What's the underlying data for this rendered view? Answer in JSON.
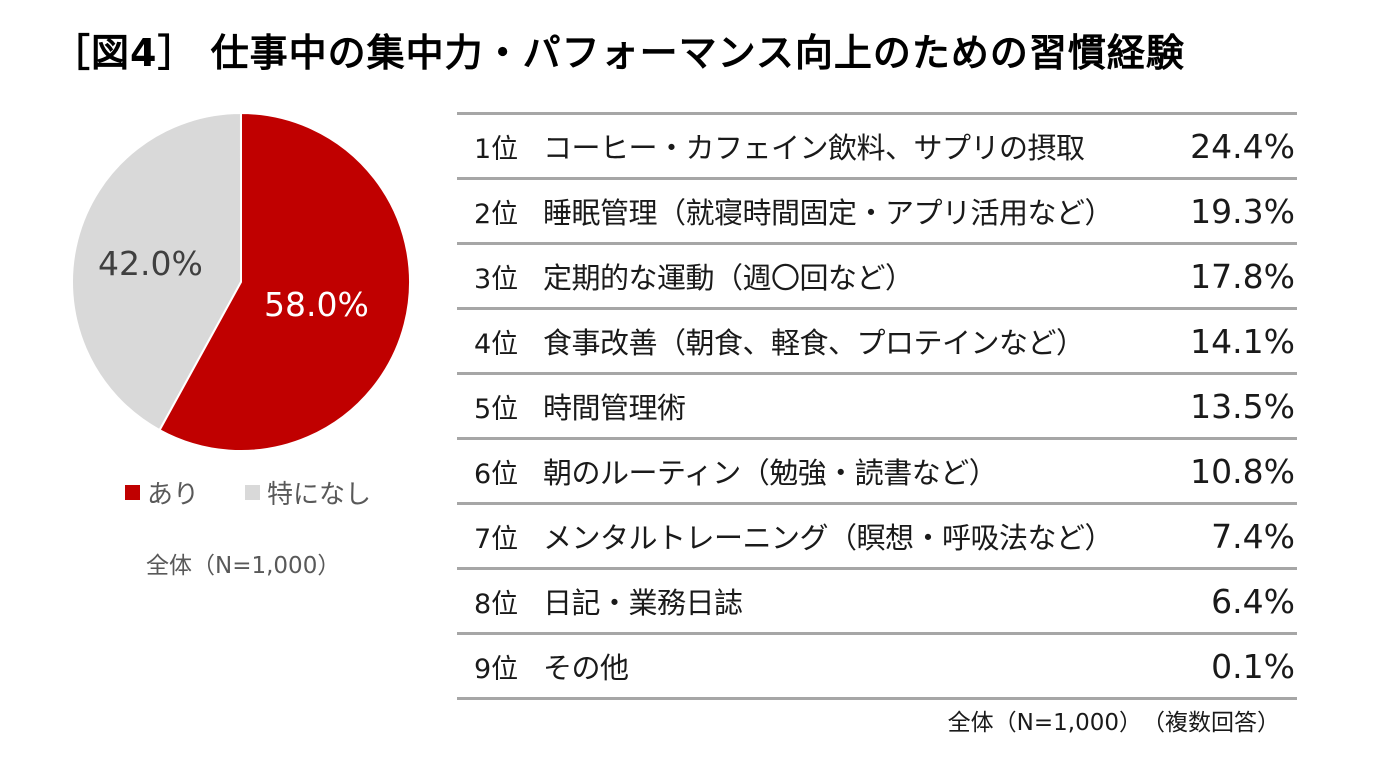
{
  "title": "［図4］ 仕事中の集中力・パフォーマンス向上のための習慣経験",
  "colors": {
    "yes": "#c00000",
    "no": "#d9d9d9"
  },
  "pie": {
    "yes_label": "58.0%",
    "no_label": "42.0%",
    "legend": [
      {
        "label": "あり",
        "color": "#c00000"
      },
      {
        "label": "特になし",
        "color": "#d9d9d9"
      }
    ],
    "note": "全体（N=1,000）"
  },
  "ranking": {
    "rows": [
      {
        "rank": "1位",
        "item": "コーヒー・カフェイン飲料、サプリの摂取",
        "pct": "24.4%"
      },
      {
        "rank": "2位",
        "item": "睡眠管理（就寝時間固定・アプリ活用など）",
        "pct": "19.3%"
      },
      {
        "rank": "3位",
        "item": "定期的な運動（週〇回など）",
        "pct": "17.8%"
      },
      {
        "rank": "4位",
        "item": "食事改善（朝食、軽食、プロテインなど）",
        "pct": "14.1%"
      },
      {
        "rank": "5位",
        "item": "時間管理術",
        "pct": "13.5%"
      },
      {
        "rank": "6位",
        "item": "朝のルーティン（勉強・読書など）",
        "pct": "10.8%"
      },
      {
        "rank": "7位",
        "item": "メンタルトレーニング（瞑想・呼吸法など）",
        "pct": "7.4%"
      },
      {
        "rank": "8位",
        "item": "日記・業務日誌",
        "pct": "6.4%"
      },
      {
        "rank": "9位",
        "item": "その他",
        "pct": "0.1%"
      }
    ],
    "note": "全体（N=1,000）　（複数回答）"
  },
  "chart_data": [
    {
      "type": "pie",
      "title": "仕事中の集中力・パフォーマンス向上のための習慣経験",
      "categories": [
        "あり",
        "特になし"
      ],
      "values": [
        58.0,
        42.0
      ],
      "colors": [
        "#c00000",
        "#d9d9d9"
      ],
      "legend_position": "bottom",
      "note": "全体（N=1,000）"
    },
    {
      "type": "table",
      "title": "習慣ランキング",
      "categories": [
        "コーヒー・カフェイン飲料、サプリの摂取",
        "睡眠管理（就寝時間固定・アプリ活用など）",
        "定期的な運動（週〇回など）",
        "食事改善（朝食、軽食、プロテインなど）",
        "時間管理術",
        "朝のルーティン（勉強・読書など）",
        "メンタルトレーニング（瞑想・呼吸法など）",
        "日記・業務日誌",
        "その他"
      ],
      "values": [
        24.4,
        19.3,
        17.8,
        14.1,
        13.5,
        10.8,
        7.4,
        6.4,
        0.1
      ],
      "unit": "%",
      "note": "全体（N=1,000）（複数回答）"
    }
  ]
}
